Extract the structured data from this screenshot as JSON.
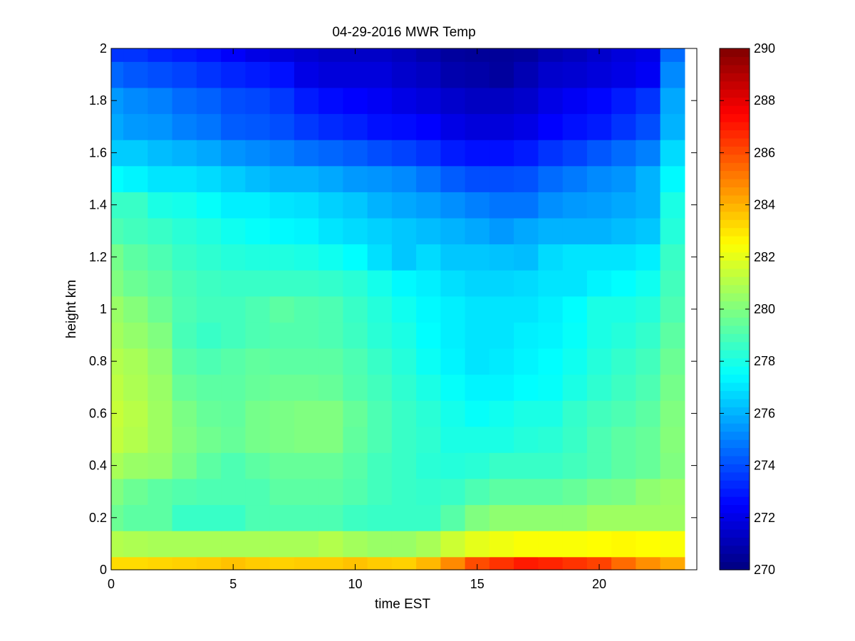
{
  "chart_data": {
    "type": "heatmap",
    "title": "04-29-2016 MWR Temp",
    "xlabel": "time EST",
    "ylabel": "height km",
    "xlim": [
      0,
      24
    ],
    "ylim": [
      0,
      2
    ],
    "xticks": [
      0,
      5,
      10,
      15,
      20
    ],
    "yticks": [
      0,
      0.2,
      0.4,
      0.6,
      0.8,
      1,
      1.2,
      1.4,
      1.6,
      1.8,
      2
    ],
    "colorbar": {
      "colormap": "jet",
      "clim": [
        270,
        290
      ],
      "ticks": [
        270,
        272,
        274,
        276,
        278,
        280,
        282,
        284,
        286,
        288,
        290
      ]
    },
    "grid": false,
    "x_centers": [
      0,
      1,
      2,
      3,
      4,
      5,
      6,
      7,
      8,
      9,
      10,
      11,
      12,
      13,
      14,
      15,
      16,
      17,
      18,
      19,
      20,
      21,
      22,
      23
    ],
    "y_centers": [
      0,
      0.1,
      0.2,
      0.3,
      0.4,
      0.5,
      0.6,
      0.7,
      0.8,
      0.9,
      1.0,
      1.1,
      1.2,
      1.3,
      1.4,
      1.5,
      1.6,
      1.7,
      1.8,
      1.9,
      2.0
    ],
    "values": [
      [
        283.2,
        283.2,
        283.3,
        283.4,
        283.5,
        283.7,
        283.5,
        283.4,
        283.5,
        283.5,
        283.7,
        283.5,
        283.4,
        283.9,
        284.8,
        286.0,
        286.5,
        287.0,
        286.8,
        286.5,
        286.2,
        285.4,
        284.7,
        284.2
      ],
      [
        281.0,
        280.9,
        280.8,
        280.8,
        280.8,
        280.8,
        280.8,
        280.8,
        280.8,
        281.0,
        280.7,
        280.5,
        280.5,
        280.8,
        281.5,
        282.0,
        282.2,
        282.4,
        282.4,
        282.4,
        282.5,
        282.6,
        282.5,
        282.4
      ],
      [
        279.6,
        279.3,
        279.3,
        278.6,
        278.6,
        278.6,
        279.0,
        279.0,
        279.0,
        279.0,
        278.7,
        278.6,
        278.6,
        278.6,
        279.2,
        280.0,
        280.3,
        280.3,
        280.3,
        280.3,
        280.6,
        280.6,
        280.6,
        280.6
      ],
      [
        280.0,
        279.6,
        279.3,
        279.1,
        279.0,
        279.0,
        279.0,
        279.3,
        279.3,
        279.3,
        279.1,
        278.8,
        278.6,
        278.5,
        278.6,
        279.0,
        279.3,
        279.3,
        279.3,
        279.5,
        279.8,
        279.9,
        280.3,
        280.5
      ],
      [
        280.8,
        280.5,
        280.4,
        279.8,
        279.3,
        279.0,
        279.3,
        279.5,
        279.5,
        279.5,
        279.2,
        278.8,
        278.6,
        278.3,
        278.2,
        278.3,
        278.6,
        278.6,
        278.6,
        278.8,
        279.0,
        279.3,
        279.5,
        280.0
      ],
      [
        281.3,
        281.0,
        280.6,
        280.0,
        279.7,
        279.5,
        279.8,
        279.9,
        280.0,
        280.0,
        279.4,
        279.0,
        278.6,
        278.4,
        278.0,
        278.0,
        278.0,
        278.2,
        278.3,
        278.6,
        279.0,
        279.3,
        279.5,
        280.1
      ],
      [
        281.4,
        281.1,
        280.6,
        279.9,
        279.5,
        279.4,
        279.8,
        279.9,
        280.0,
        280.0,
        279.5,
        279.0,
        278.6,
        278.3,
        277.9,
        277.6,
        277.8,
        278.0,
        278.0,
        278.5,
        278.8,
        279.0,
        279.3,
        280.0
      ],
      [
        281.2,
        280.9,
        280.5,
        279.5,
        279.3,
        279.3,
        279.5,
        279.6,
        279.6,
        279.5,
        279.1,
        278.8,
        278.4,
        278.0,
        277.6,
        277.3,
        277.3,
        277.5,
        277.6,
        278.0,
        278.4,
        278.7,
        279.0,
        279.8
      ],
      [
        281.0,
        280.8,
        280.3,
        279.2,
        279.0,
        279.2,
        279.4,
        279.3,
        279.3,
        279.3,
        279.0,
        278.6,
        278.2,
        277.7,
        277.3,
        277.0,
        277.1,
        277.3,
        277.5,
        277.8,
        278.2,
        278.5,
        278.8,
        279.6
      ],
      [
        280.7,
        280.4,
        280.0,
        278.9,
        278.6,
        278.8,
        279.0,
        279.1,
        279.1,
        279.0,
        278.7,
        278.3,
        278.0,
        277.5,
        277.2,
        277.0,
        277.0,
        277.2,
        277.3,
        277.6,
        278.0,
        278.2,
        278.5,
        279.3
      ],
      [
        280.5,
        280.1,
        279.6,
        279.0,
        278.8,
        278.8,
        279.0,
        279.3,
        279.1,
        279.0,
        278.6,
        278.2,
        277.8,
        277.4,
        277.2,
        277.0,
        277.0,
        277.0,
        277.2,
        277.5,
        278.0,
        278.0,
        278.2,
        279.0
      ],
      [
        280.0,
        279.6,
        279.3,
        278.9,
        278.7,
        278.6,
        278.6,
        278.6,
        278.6,
        278.5,
        278.3,
        277.9,
        277.4,
        277.2,
        276.9,
        276.7,
        276.7,
        276.8,
        277.0,
        277.0,
        277.3,
        277.5,
        277.8,
        278.8
      ],
      [
        279.8,
        279.3,
        279.0,
        278.6,
        278.4,
        278.2,
        278.1,
        278.1,
        278.0,
        277.8,
        277.5,
        276.9,
        276.4,
        276.8,
        276.4,
        276.4,
        276.3,
        276.2,
        276.8,
        277.0,
        277.0,
        277.0,
        277.2,
        278.6
      ],
      [
        279.0,
        278.8,
        278.6,
        278.3,
        278.1,
        277.8,
        277.6,
        277.4,
        277.3,
        277.0,
        276.8,
        276.6,
        276.4,
        276.2,
        276.0,
        275.8,
        275.5,
        275.8,
        276.0,
        276.0,
        276.0,
        276.2,
        276.4,
        278.2
      ],
      [
        278.6,
        278.6,
        278.0,
        277.9,
        277.6,
        277.2,
        277.2,
        277.0,
        276.9,
        276.6,
        276.4,
        276.0,
        275.8,
        275.6,
        275.3,
        275.0,
        274.8,
        274.8,
        275.3,
        275.5,
        275.6,
        275.8,
        276.0,
        278.0
      ],
      [
        277.5,
        277.3,
        277.0,
        277.0,
        276.8,
        276.5,
        276.2,
        276.0,
        276.0,
        275.8,
        275.5,
        275.4,
        275.2,
        274.8,
        274.3,
        274.0,
        274.0,
        274.1,
        274.6,
        274.9,
        275.2,
        275.4,
        276.0,
        277.4
      ],
      [
        276.5,
        276.5,
        276.2,
        276.0,
        275.8,
        275.4,
        275.2,
        275.0,
        274.7,
        274.5,
        274.3,
        274.0,
        273.8,
        273.5,
        273.0,
        272.8,
        272.8,
        273.0,
        273.5,
        273.8,
        274.2,
        274.6,
        275.0,
        276.8
      ],
      [
        275.8,
        275.5,
        275.4,
        275.0,
        274.8,
        274.3,
        274.2,
        274.0,
        273.6,
        273.3,
        273.1,
        272.8,
        272.7,
        272.5,
        272.0,
        271.8,
        271.8,
        272.0,
        272.5,
        272.8,
        273.0,
        273.5,
        274.0,
        276.0
      ],
      [
        275.5,
        275.2,
        275.0,
        274.6,
        274.4,
        274.0,
        273.9,
        273.6,
        273.0,
        272.7,
        272.5,
        272.3,
        272.0,
        271.8,
        271.5,
        271.3,
        271.3,
        271.5,
        272.0,
        272.3,
        272.6,
        273.0,
        273.5,
        275.8
      ],
      [
        274.5,
        274.2,
        274.0,
        273.8,
        273.5,
        273.2,
        273.0,
        272.8,
        272.0,
        271.8,
        271.8,
        271.8,
        271.5,
        271.3,
        270.9,
        270.8,
        270.6,
        271.0,
        271.5,
        271.6,
        271.8,
        272.0,
        272.3,
        275.2
      ],
      [
        273.5,
        273.5,
        273.2,
        273.0,
        272.8,
        272.4,
        272.0,
        271.8,
        271.6,
        271.4,
        271.4,
        271.4,
        271.2,
        270.9,
        270.6,
        270.5,
        270.5,
        270.6,
        271.0,
        271.2,
        271.5,
        271.8,
        272.0,
        274.6
      ]
    ]
  }
}
